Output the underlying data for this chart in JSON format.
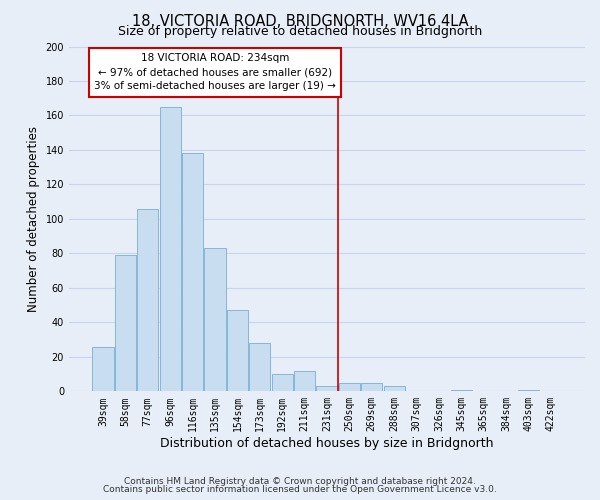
{
  "title": "18, VICTORIA ROAD, BRIDGNORTH, WV16 4LA",
  "subtitle": "Size of property relative to detached houses in Bridgnorth",
  "xlabel": "Distribution of detached houses by size in Bridgnorth",
  "ylabel": "Number of detached properties",
  "bar_labels": [
    "39sqm",
    "58sqm",
    "77sqm",
    "96sqm",
    "116sqm",
    "135sqm",
    "154sqm",
    "173sqm",
    "192sqm",
    "211sqm",
    "231sqm",
    "250sqm",
    "269sqm",
    "288sqm",
    "307sqm",
    "326sqm",
    "345sqm",
    "365sqm",
    "384sqm",
    "403sqm",
    "422sqm"
  ],
  "bar_values": [
    26,
    79,
    106,
    165,
    138,
    83,
    47,
    28,
    10,
    12,
    3,
    5,
    5,
    3,
    0,
    0,
    1,
    0,
    0,
    1,
    0
  ],
  "bar_color": "#c8ddf0",
  "bar_edge_color": "#7aafd4",
  "ylim": [
    0,
    200
  ],
  "yticks": [
    0,
    20,
    40,
    60,
    80,
    100,
    120,
    140,
    160,
    180,
    200
  ],
  "property_line_x": 10.5,
  "property_line_color": "#cc0000",
  "annotation_title": "18 VICTORIA ROAD: 234sqm",
  "annotation_line1": "← 97% of detached houses are smaller (692)",
  "annotation_line2": "3% of semi-detached houses are larger (19) →",
  "annotation_box_color": "#ffffff",
  "annotation_box_edge": "#cc0000",
  "footnote1": "Contains HM Land Registry data © Crown copyright and database right 2024.",
  "footnote2": "Contains public sector information licensed under the Open Government Licence v3.0.",
  "background_color": "#e8eef8",
  "grid_color": "#c8d4e8",
  "title_fontsize": 10.5,
  "subtitle_fontsize": 9,
  "ylabel_fontsize": 8.5,
  "xlabel_fontsize": 9,
  "tick_fontsize": 7,
  "annotation_fontsize": 7.5,
  "footnote_fontsize": 6.5
}
